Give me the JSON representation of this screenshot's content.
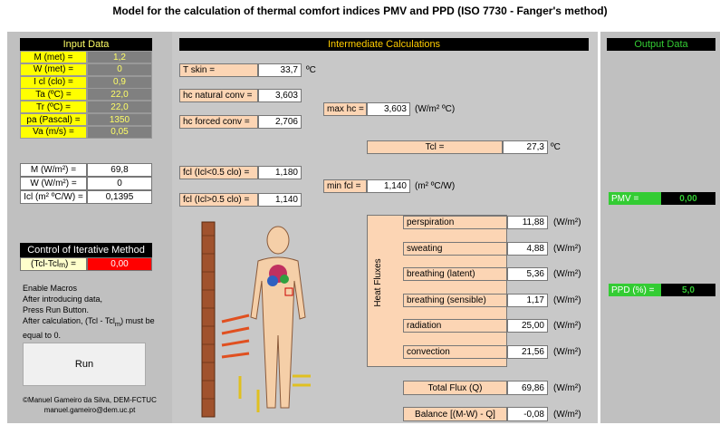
{
  "title": "Model for the calculation of thermal comfort indices PMV and PPD  (ISO 7730 - Fanger's method)",
  "input": {
    "header": "Input Data",
    "rows": [
      {
        "label": "M (met) =",
        "value": "1,2"
      },
      {
        "label": "W (met) =",
        "value": "0"
      },
      {
        "label": "I cl (clo) =",
        "value": "0,9"
      },
      {
        "label": "Ta (ºC) =",
        "value": "22,0"
      },
      {
        "label": "Tr (ºC) =",
        "value": "22,0"
      },
      {
        "label": "pa (Pascal) =",
        "value": "1350"
      },
      {
        "label": "Va (m/s) =",
        "value": "0,05"
      }
    ]
  },
  "derived": {
    "rows": [
      {
        "label": "M (W/m²) =",
        "value": "69,8"
      },
      {
        "label": "W (W/m²) =",
        "value": "0"
      },
      {
        "label": "Icl (m² ºC/W) =",
        "value": "0,1395"
      }
    ]
  },
  "control": {
    "header": "Control of Iterative Method",
    "label": "(Tcl-Tcl",
    "label_sub": "m",
    "label_end": ") =",
    "value": "0,00"
  },
  "instructions": [
    "Enable Macros",
    "After introducing data,",
    "Press Run Button."
  ],
  "note": {
    "text": "After calculation, (Tcl - Tcl",
    "sub": "m",
    "end": ") must be equal to 0."
  },
  "run_button": "Run",
  "footer": [
    "©Manuel Gameiro da Silva, DEM-FCTUC",
    "manuel.gameiro@dem.uc.pt"
  ],
  "intermediate": {
    "header": "Intermediate Calculations",
    "t_skin": {
      "label": "T skin =",
      "value": "33,7",
      "unit": "ºC"
    },
    "hc_natural": {
      "label": "hc natural conv =",
      "value": "3,603"
    },
    "max_hc": {
      "label": "max hc =",
      "value": "3,603",
      "unit": "(W/m² ºC)"
    },
    "hc_forced": {
      "label": "hc forced conv =",
      "value": "2,706"
    },
    "tcl": {
      "label": "Tcl =",
      "value": "27,3",
      "unit": "ºC"
    },
    "fcl_low": {
      "label": "fcl (Icl<0.5 clo) =",
      "value": "1,180"
    },
    "min_fcl": {
      "label": "min fcl =",
      "value": "1,140",
      "unit": "(m² ºC/W)"
    },
    "fcl_high": {
      "label": "fcl (Icl>0.5 clo) =",
      "value": "1,140"
    }
  },
  "heat_fluxes": {
    "title": "Heat Fluxes",
    "rows": [
      {
        "label": "perspiration",
        "value": "11,88",
        "unit": "(W/m²)"
      },
      {
        "label": "sweating",
        "value": "4,88",
        "unit": "(W/m²)"
      },
      {
        "label": "breathing (latent)",
        "value": "5,36",
        "unit": "(W/m²)"
      },
      {
        "label": "breathing (sensible)",
        "value": "1,17",
        "unit": "(W/m²)"
      },
      {
        "label": "radiation",
        "value": "25,00",
        "unit": "(W/m²)"
      },
      {
        "label": "convection",
        "value": "21,56",
        "unit": "(W/m²)"
      }
    ],
    "total": {
      "label": "Total Flux (Q)",
      "value": "69,86",
      "unit": "(W/m²)"
    },
    "balance": {
      "label": "Balance [(M-W) - Q]",
      "value": "-0,08",
      "unit": "(W/m²)"
    }
  },
  "output": {
    "header": "Output Data",
    "pmv": {
      "label": "PMV  =",
      "value": "0,00"
    },
    "ppd": {
      "label": "PPD (%) =",
      "value": "5,0"
    }
  }
}
